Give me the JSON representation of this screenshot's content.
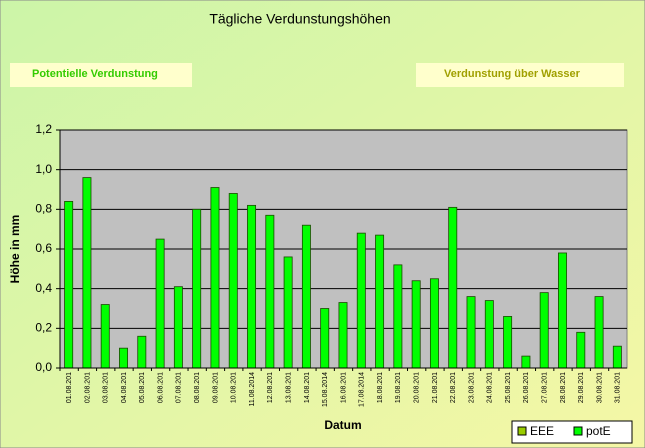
{
  "chart_data": {
    "type": "bar",
    "title": "Tägliche Verdunstungshöhen",
    "annotations": [
      "Potentielle Verdunstung",
      "Verdunstung über Wasser"
    ],
    "x_label": "Datum",
    "y_label": "Höhe in mm",
    "categories": [
      "01.08.201",
      "02.08.201",
      "03.08.201",
      "04.08.201",
      "05.08.201",
      "06.08.201",
      "07.08.201",
      "08.08.201",
      "09.08.201",
      "10.08.201",
      "11.08.2014",
      "12.08.201",
      "13.08.201",
      "14.08.201",
      "15.08.2014",
      "16.08.201",
      "17.08.2014",
      "18.08.201",
      "19.08.201",
      "20.08.201",
      "21.08.201",
      "22.08.201",
      "23.08.201",
      "24.08.201",
      "25.08.201",
      "26.08.201",
      "27.08.201",
      "28.08.201",
      "29.08.201",
      "30.08.201",
      "31.08.201"
    ],
    "series": [
      {
        "name": "EEE",
        "color": "#99cc00",
        "values": [
          null,
          null,
          null,
          null,
          null,
          null,
          null,
          null,
          null,
          null,
          null,
          null,
          null,
          null,
          null,
          null,
          null,
          null,
          null,
          null,
          null,
          null,
          null,
          null,
          null,
          null,
          null,
          null,
          null,
          null,
          null
        ]
      },
      {
        "name": "potE",
        "color": "#00ff00",
        "values": [
          0.84,
          0.96,
          0.32,
          0.1,
          0.16,
          0.65,
          0.41,
          0.8,
          0.91,
          0.88,
          0.82,
          0.77,
          0.56,
          0.72,
          0.3,
          0.33,
          0.68,
          0.67,
          0.52,
          0.44,
          0.45,
          0.81,
          0.36,
          0.34,
          0.26,
          0.06,
          0.38,
          0.58,
          0.18,
          0.36,
          0.11
        ]
      }
    ],
    "ylim": [
      0,
      1.2
    ],
    "yticks": [
      {
        "value": 0,
        "label": "0,0"
      },
      {
        "value": 0.2,
        "label": "0,2"
      },
      {
        "value": 0.4,
        "label": "0,4"
      },
      {
        "value": 0.6,
        "label": "0,6"
      },
      {
        "value": 0.8,
        "label": "0,8"
      },
      {
        "value": 1.0,
        "label": "1,0"
      },
      {
        "value": 1.2,
        "label": "1,2"
      }
    ],
    "grid": true,
    "legend": "bottom-right"
  }
}
